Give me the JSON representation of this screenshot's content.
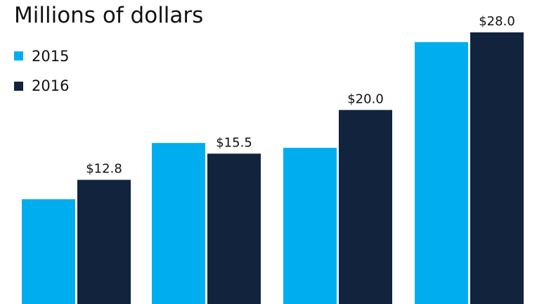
{
  "chart_data": {
    "type": "bar",
    "title": "Millions of dollars",
    "categories": [
      "",
      "",
      "",
      ""
    ],
    "series": [
      {
        "name": "2015",
        "color": "#00AEEF",
        "values": [
          10.8,
          16.6,
          16.1,
          27.0
        ]
      },
      {
        "name": "2016",
        "color": "#12233E",
        "values": [
          12.8,
          15.5,
          20.0,
          28.0
        ]
      }
    ],
    "data_labels": [
      {
        "series": "2016",
        "index": 0,
        "text": "$12.8"
      },
      {
        "series": "2016",
        "index": 1,
        "text": "$15.5"
      },
      {
        "series": "2016",
        "index": 2,
        "text": "$20.0"
      },
      {
        "series": "2016",
        "index": 3,
        "text": "$28.0"
      }
    ],
    "xlabel": "",
    "ylabel": "",
    "ylim": [
      0,
      28.0
    ],
    "grid": false,
    "legend_position": "top-left"
  }
}
